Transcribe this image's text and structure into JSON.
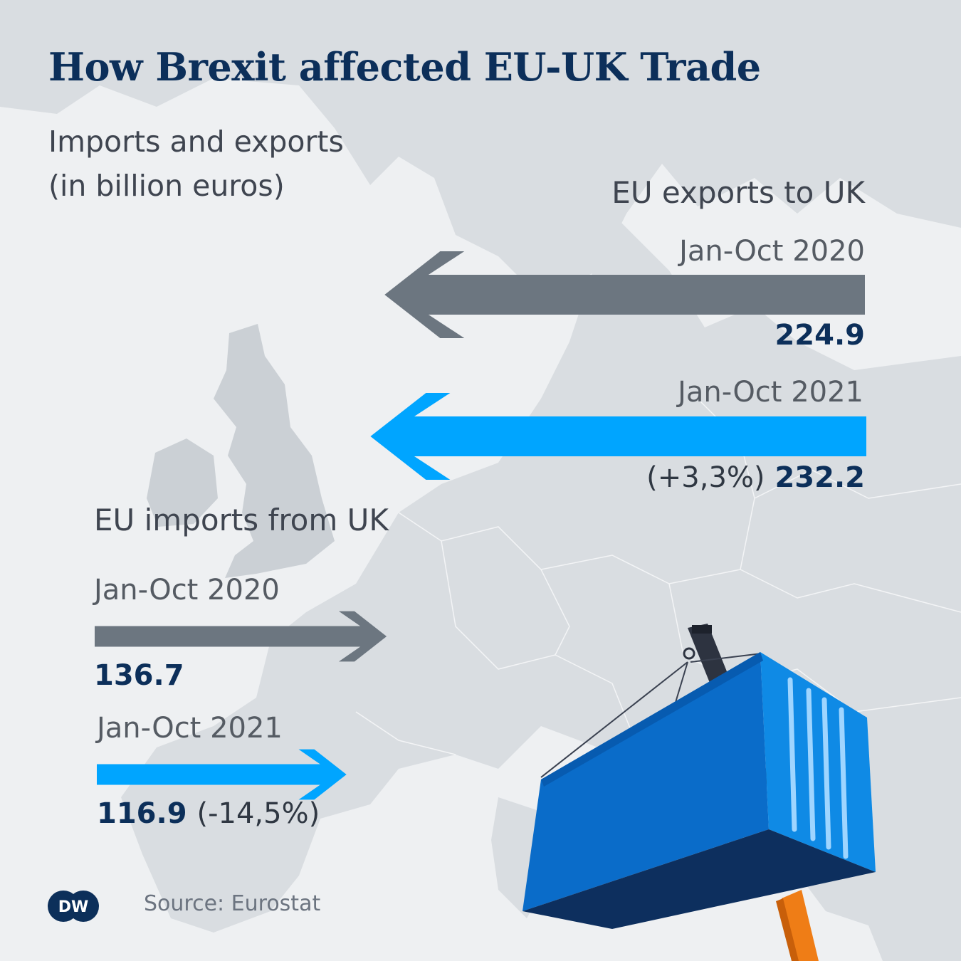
{
  "title": "How Brexit affected EU-UK Trade",
  "subtitle_line1": "Imports and exports",
  "subtitle_line2": "(in billion euros)",
  "exports": {
    "heading": "EU exports to UK",
    "rows": [
      {
        "period": "Jan-Oct 2020",
        "value": "224.9",
        "change": ""
      },
      {
        "period": "Jan-Oct 2021",
        "value": "232.2",
        "change": "(+3,3%)"
      }
    ]
  },
  "imports": {
    "heading": "EU imports from UK",
    "rows": [
      {
        "period": "Jan-Oct 2020",
        "value": "136.7",
        "change": ""
      },
      {
        "period": "Jan-Oct 2021",
        "value": "116.9",
        "change": "(-14,5%)"
      }
    ]
  },
  "source": "Source: Eurostat",
  "logo_text": "DW",
  "colors": {
    "arrow_2020": "#6c7680",
    "arrow_2021": "#00a5ff",
    "title": "#0c2f5a",
    "land": "#d4d8dc",
    "container": "#0a6cc9"
  },
  "chart_data": {
    "type": "bar",
    "categories": [
      "EU exports to UK",
      "EU imports from UK"
    ],
    "series": [
      {
        "name": "Jan-Oct 2020",
        "values": [
          224.9,
          136.7
        ]
      },
      {
        "name": "Jan-Oct 2021",
        "values": [
          232.2,
          116.9
        ]
      }
    ],
    "changes": {
      "EU exports to UK": "+3,3%",
      "EU imports from UK": "-14,5%"
    },
    "title": "How Brexit affected EU-UK Trade",
    "subtitle": "Imports and exports (in billion euros)",
    "unit": "billion euros"
  }
}
